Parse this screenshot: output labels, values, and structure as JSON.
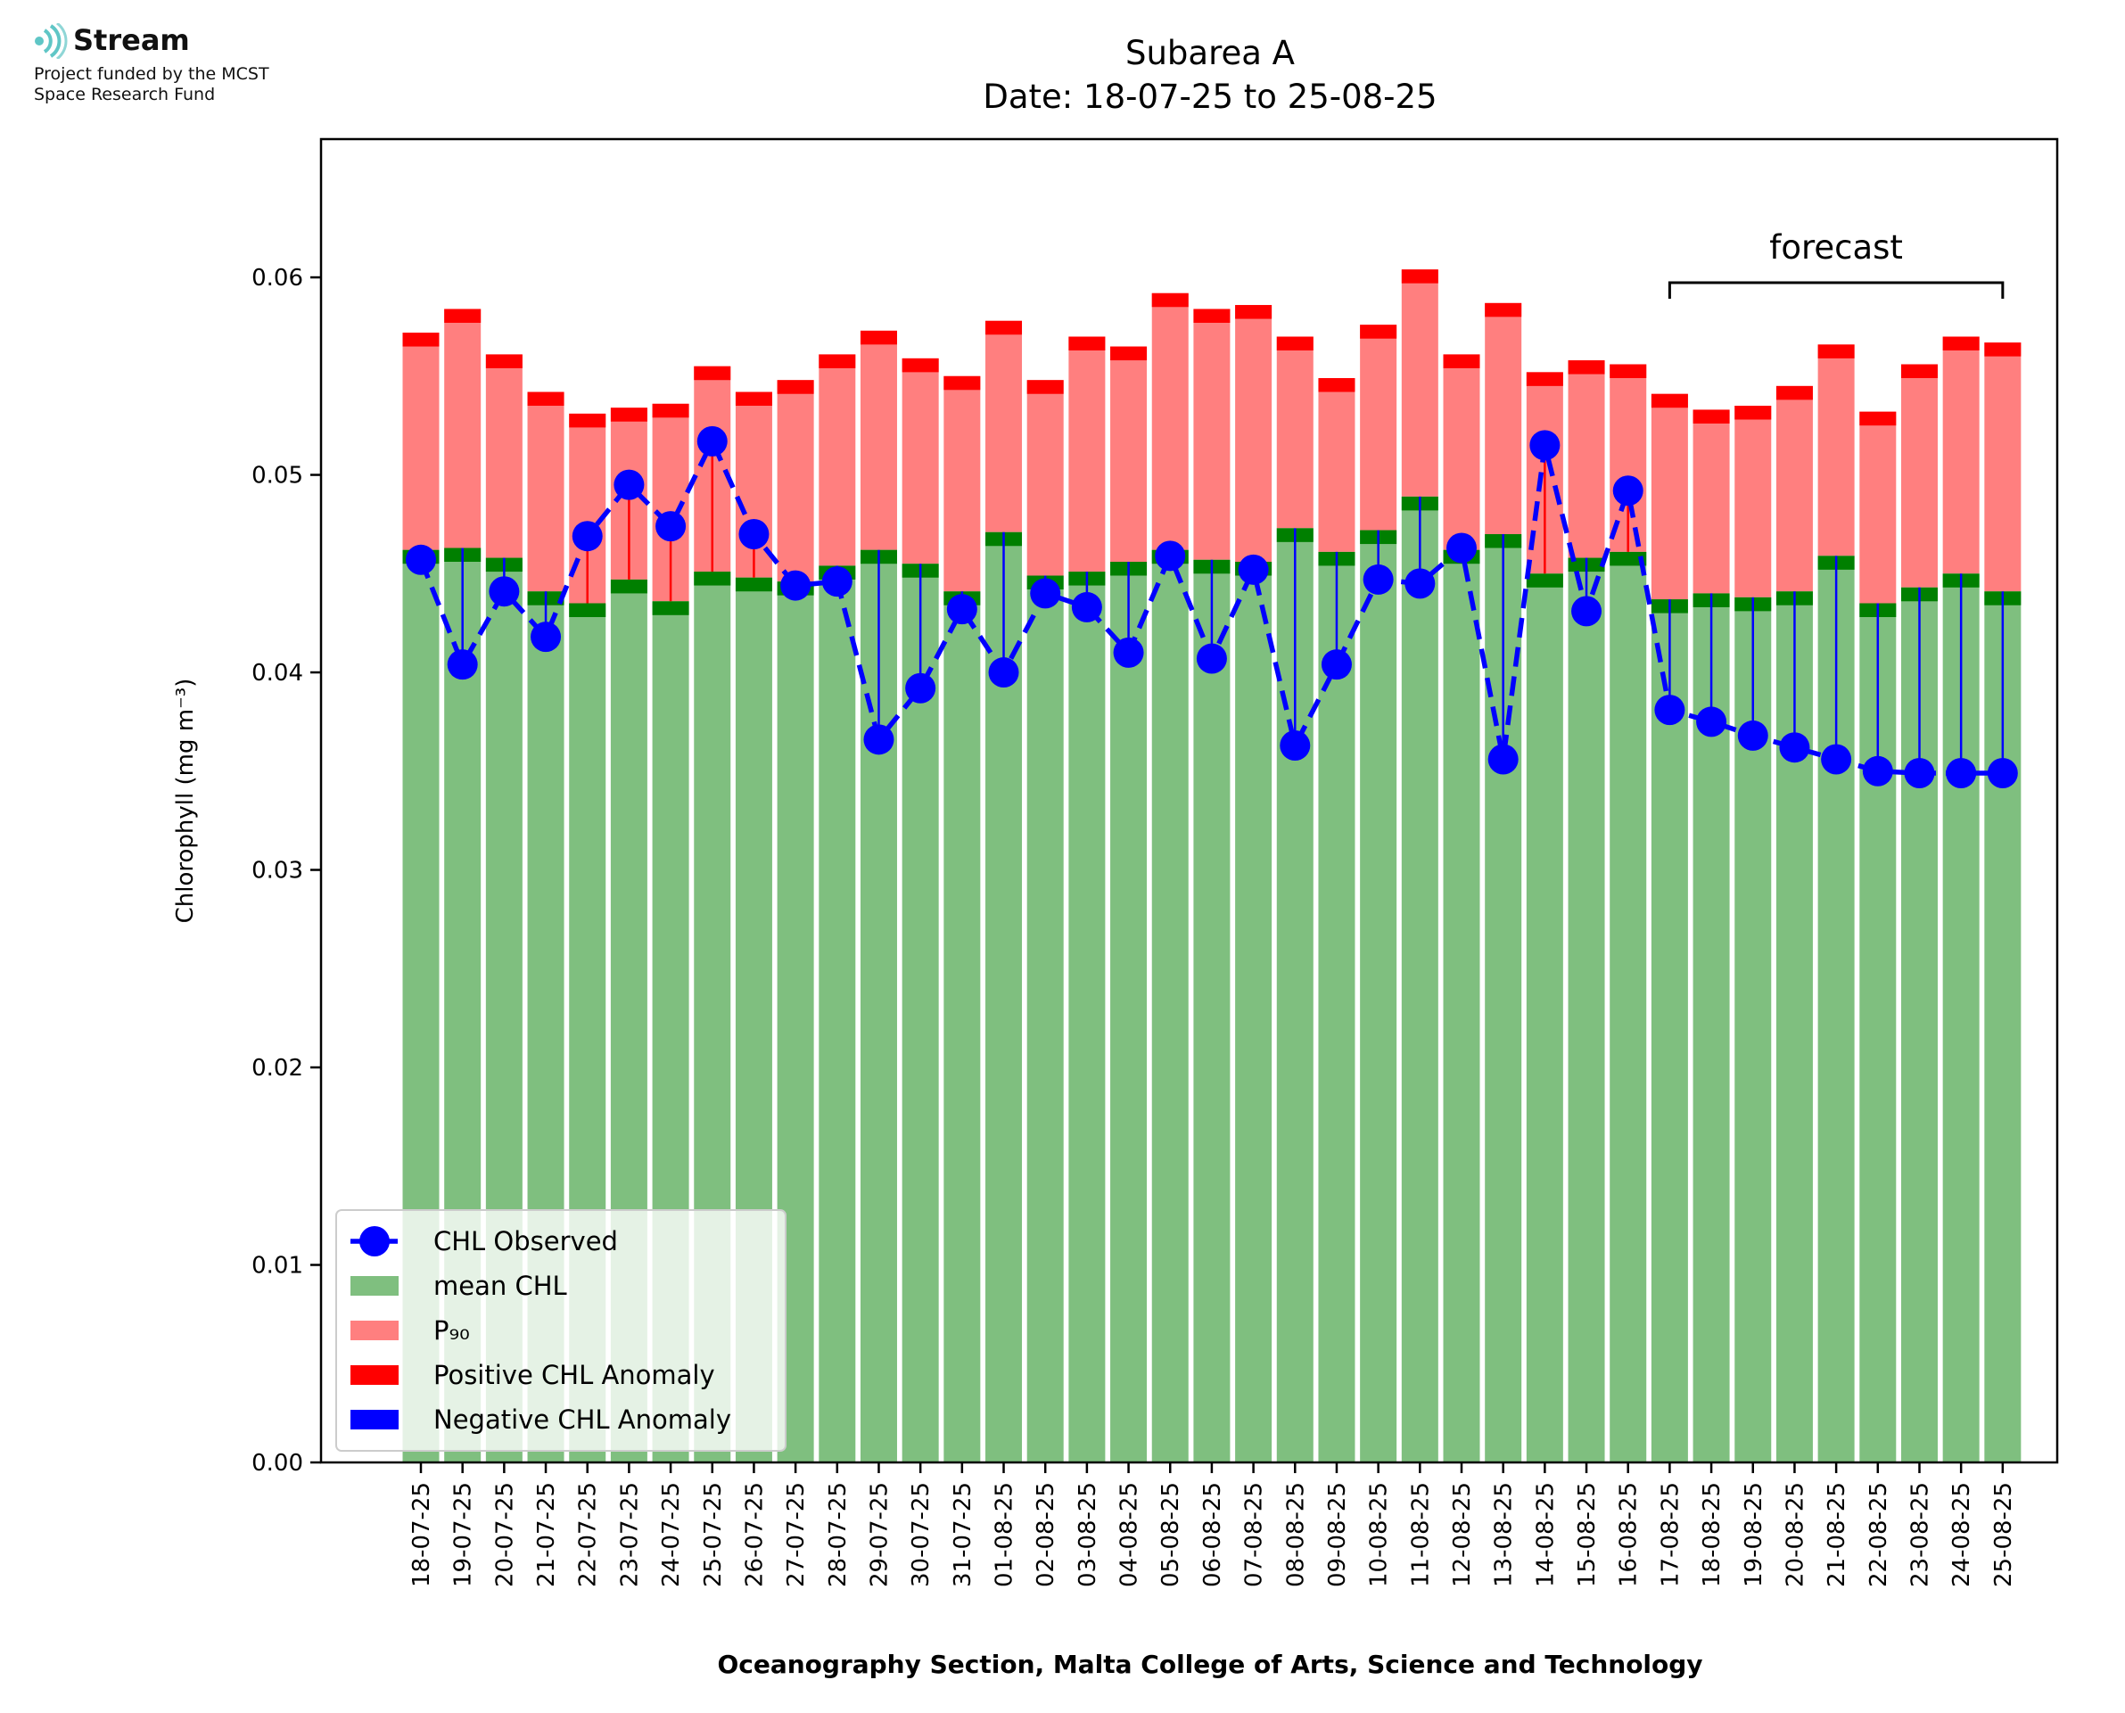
{
  "logo": {
    "name": "Stream",
    "line1": "Project funded by the MCST",
    "line2": "Space Research Fund",
    "accent": "#5fc6c6"
  },
  "chart_data": {
    "type": "bar",
    "title": "Subarea A",
    "subtitle": "Date: 18-07-25 to 25-08-25",
    "xlabel": "Oceanography Section, Malta College of Arts, Science and Technology",
    "ylabel": "Chlorophyll (mg m⁻³)",
    "ylim": [
      0,
      0.067
    ],
    "yticks": [
      0.0,
      0.01,
      0.02,
      0.03,
      0.04,
      0.05,
      0.06
    ],
    "ytick_labels": [
      "0.00",
      "0.01",
      "0.02",
      "0.03",
      "0.04",
      "0.05",
      "0.06"
    ],
    "grid": false,
    "legend_position": "bottom-left",
    "categories": [
      "18-07-25",
      "19-07-25",
      "20-07-25",
      "21-07-25",
      "22-07-25",
      "23-07-25",
      "24-07-25",
      "25-07-25",
      "26-07-25",
      "27-07-25",
      "28-07-25",
      "29-07-25",
      "30-07-25",
      "31-07-25",
      "01-08-25",
      "02-08-25",
      "03-08-25",
      "04-08-25",
      "05-08-25",
      "06-08-25",
      "07-08-25",
      "08-08-25",
      "09-08-25",
      "10-08-25",
      "11-08-25",
      "12-08-25",
      "13-08-25",
      "14-08-25",
      "15-08-25",
      "16-08-25",
      "17-08-25",
      "18-08-25",
      "19-08-25",
      "20-08-25",
      "21-08-25",
      "22-08-25",
      "23-08-25",
      "24-08-25",
      "25-08-25"
    ],
    "series": [
      {
        "name": "CHL Observed",
        "color": "#0000ff",
        "style": "dashed line with circle markers",
        "values": [
          0.0457,
          0.0404,
          0.0441,
          0.0418,
          0.0469,
          0.0495,
          0.0474,
          0.0517,
          0.047,
          0.0444,
          0.0446,
          0.0366,
          0.0392,
          0.0432,
          0.04,
          0.044,
          0.0433,
          0.041,
          0.0459,
          0.0407,
          0.0452,
          0.0363,
          0.0404,
          0.0447,
          0.0445,
          0.0463,
          0.0356,
          0.0515,
          0.0431,
          0.0492,
          0.0381,
          0.0375,
          0.0368,
          0.0362,
          0.0356,
          0.035,
          0.0349,
          0.0349,
          0.0349
        ]
      },
      {
        "name": "mean CHL",
        "color": "#7fbf7f",
        "values": [
          0.0462,
          0.0463,
          0.0458,
          0.0441,
          0.0435,
          0.0447,
          0.0436,
          0.0451,
          0.0448,
          0.0446,
          0.0454,
          0.0462,
          0.0455,
          0.0441,
          0.0471,
          0.0449,
          0.0451,
          0.0456,
          0.0462,
          0.0457,
          0.0456,
          0.0473,
          0.0461,
          0.0472,
          0.0489,
          0.0462,
          0.047,
          0.045,
          0.0458,
          0.0461,
          0.0437,
          0.044,
          0.0438,
          0.0441,
          0.0459,
          0.0435,
          0.0443,
          0.045,
          0.0441
        ]
      },
      {
        "name": "P₉₀",
        "color": "#ff7f7f",
        "values": [
          0.0572,
          0.0584,
          0.0561,
          0.0542,
          0.0531,
          0.0534,
          0.0536,
          0.0555,
          0.0542,
          0.0548,
          0.0561,
          0.0573,
          0.0559,
          0.055,
          0.0578,
          0.0548,
          0.057,
          0.0565,
          0.0592,
          0.0584,
          0.0586,
          0.057,
          0.0549,
          0.0576,
          0.0604,
          0.0561,
          0.0587,
          0.0552,
          0.0558,
          0.0556,
          0.0541,
          0.0533,
          0.0535,
          0.0545,
          0.0566,
          0.0532,
          0.0556,
          0.057,
          0.0567
        ]
      }
    ],
    "legend": [
      {
        "label": "CHL Observed",
        "kind": "marker-line",
        "color": "#0000ff"
      },
      {
        "label": "mean CHL",
        "kind": "patch",
        "color": "#7fbf7f"
      },
      {
        "label": "P₉₀",
        "kind": "patch",
        "color": "#ff7f7f"
      },
      {
        "label": "Positive CHL Anomaly",
        "kind": "patch",
        "color": "#ff0000"
      },
      {
        "label": "Negative CHL Anomaly",
        "kind": "patch",
        "color": "#0000ff"
      }
    ],
    "annotation": {
      "text": "forecast",
      "from": "17-08-25",
      "to": "25-08-25"
    },
    "colors": {
      "mean_band": "#007f00",
      "p90_band": "#ff0000",
      "positive_anomaly": "#ff0000",
      "negative_anomaly": "#0000ff"
    }
  }
}
